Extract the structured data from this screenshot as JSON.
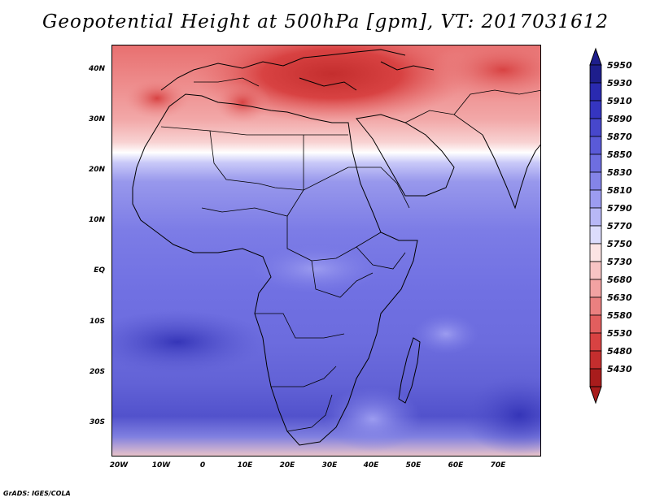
{
  "title": "Geopotential Height at 500hPa [gpm], VT: 2017031612",
  "credit": "GrADS: IGES/COLA",
  "map": {
    "projection": "latlon",
    "lon_range": [
      -23,
      80
    ],
    "lat_range": [
      -37,
      45
    ],
    "lat_ticks": [
      "40N",
      "30N",
      "20N",
      "10N",
      "EQ",
      "10S",
      "20S",
      "30S"
    ],
    "lon_ticks": [
      "20W",
      "10W",
      "0",
      "10E",
      "20E",
      "30E",
      "40E",
      "50E",
      "60E",
      "70E"
    ],
    "field": "Geopotential height 500hPa",
    "units": "gpm"
  },
  "colorbar": {
    "levels": [
      "5950",
      "5930",
      "5910",
      "5890",
      "5870",
      "5850",
      "5830",
      "5810",
      "5790",
      "5770",
      "5750",
      "5730",
      "5680",
      "5630",
      "5580",
      "5530",
      "5480",
      "5430"
    ],
    "colors": [
      "#1e1e8c",
      "#2a2ab0",
      "#3535c0",
      "#4747cc",
      "#5a5ad8",
      "#6e6ee0",
      "#8484e8",
      "#9c9cf0",
      "#b8b8f6",
      "#dcdcfc",
      "#fce4e4",
      "#f8c4c4",
      "#f2a2a2",
      "#ea8080",
      "#e25e5e",
      "#d84242",
      "#c42e2e",
      "#a81c1c"
    ]
  }
}
